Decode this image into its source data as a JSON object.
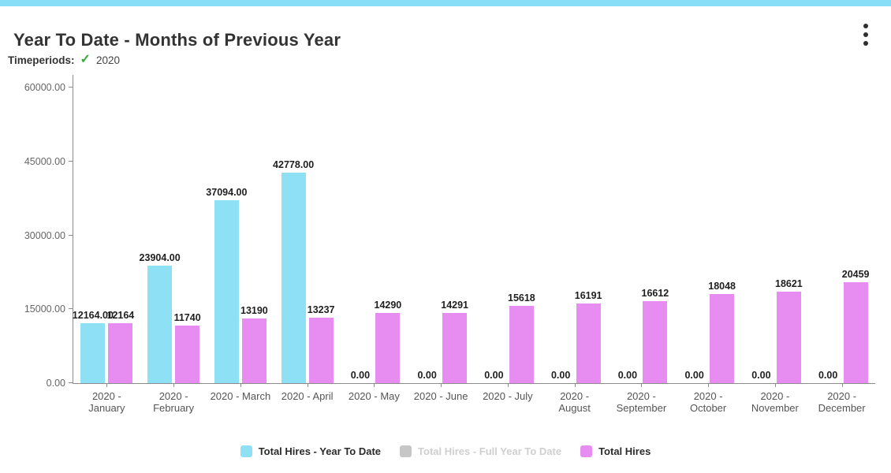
{
  "header": {
    "title": "Year To Date - Months of Previous Year",
    "menu_icon": "kebab-vertical"
  },
  "filters": {
    "label": "Timeperiods:",
    "check_icon": "✓",
    "selected_period": "2020"
  },
  "chart_data": {
    "type": "bar",
    "title": "Year To Date - Months of Previous Year",
    "categories": [
      "2020 -\nJanuary",
      "2020 -\nFebruary",
      "2020 - March",
      "2020 - April",
      "2020 - May",
      "2020 - June",
      "2020 - July",
      "2020 -\nAugust",
      "2020 -\nSeptember",
      "2020 -\nOctober",
      "2020 -\nNovember",
      "2020 -\nDecember"
    ],
    "series": [
      {
        "name": "Total Hires - Year To Date",
        "color": "#8EE1F5",
        "enabled": true,
        "values": [
          12164,
          23904,
          37094,
          42778,
          0,
          0,
          0,
          0,
          0,
          0,
          0,
          0
        ],
        "labels": [
          "12164.00",
          "23904.00",
          "37094.00",
          "42778.00",
          "0.00",
          "0.00",
          "0.00",
          "0.00",
          "0.00",
          "0.00",
          "0.00",
          "0.00"
        ]
      },
      {
        "name": "Total Hires - Full Year To Date",
        "color": "#C6C6C6",
        "enabled": false,
        "values": [],
        "labels": []
      },
      {
        "name": "Total Hires",
        "color": "#E78DF2",
        "enabled": true,
        "values": [
          12164,
          11740,
          13190,
          13237,
          14290,
          14291,
          15618,
          16191,
          16612,
          18048,
          18621,
          20459
        ],
        "labels": [
          "12164",
          "11740",
          "13190",
          "13237",
          "14290",
          "14291",
          "15618",
          "16191",
          "16612",
          "18048",
          "18621",
          "20459"
        ]
      }
    ],
    "y_axis": {
      "max": 60000,
      "ticks": [
        {
          "label": "0.00",
          "value": 0
        },
        {
          "label": "15000.00",
          "value": 15000
        },
        {
          "label": "30000.00",
          "value": 30000
        },
        {
          "label": "45000.00",
          "value": 45000
        },
        {
          "label": "60000.00",
          "value": 60000
        }
      ]
    },
    "xlabel": "",
    "ylabel": "",
    "grid": false,
    "legend_position": "bottom",
    "colors": {
      "topbar_accent": "#89DEF7",
      "axis": "#8C8C8C",
      "value_label_text": "#1F1F1F",
      "disabled_legend_text": "#CFCFCF"
    }
  }
}
